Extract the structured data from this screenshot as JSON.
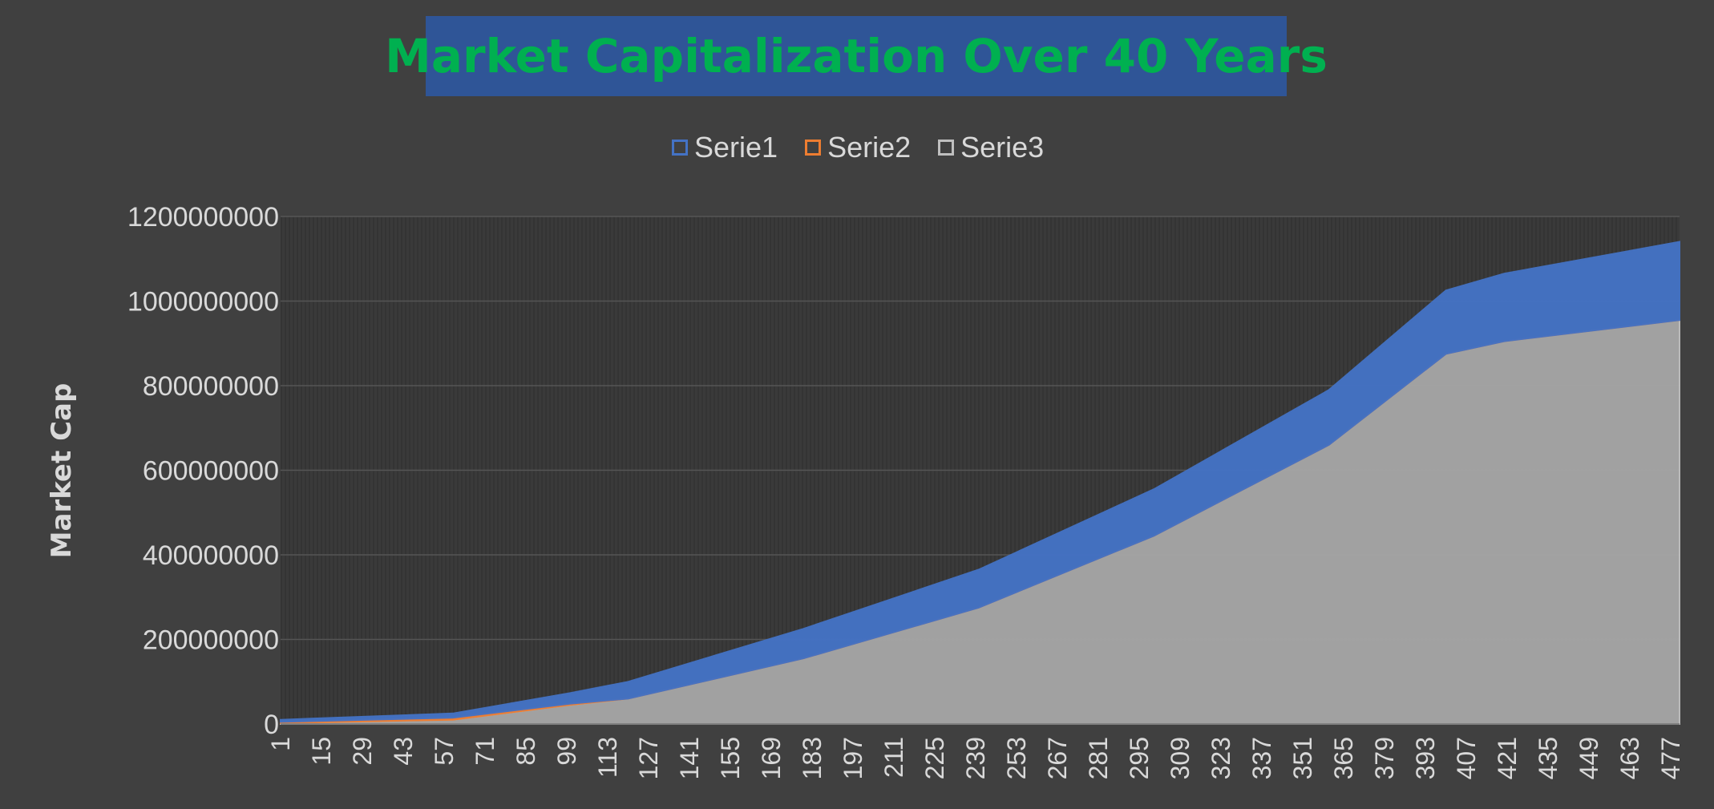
{
  "chart_data": {
    "type": "area",
    "stacked": true,
    "title": "Market Capitalization Over 40 Years",
    "xlabel": "",
    "ylabel": "Market Cap",
    "x_range": [
      1,
      480
    ],
    "x_tick_step": 14,
    "ylim": [
      0,
      1200000000
    ],
    "y_ticks": [
      0,
      200000000,
      400000000,
      600000000,
      800000000,
      1000000000,
      1200000000
    ],
    "grid": true,
    "legend_position": "top",
    "x": [
      1,
      60,
      100,
      120,
      180,
      240,
      300,
      360,
      400,
      420,
      480
    ],
    "series": [
      {
        "name": "Serie1",
        "color": "#4472C4",
        "outline": "#4472C4",
        "values": [
          5000000,
          10000000,
          25000000,
          40000000,
          70000000,
          90000000,
          110000000,
          130000000,
          150000000,
          160000000,
          185000000
        ]
      },
      {
        "name": "Serie2",
        "color": "#ED7D31",
        "outline": "#ED7D31",
        "values": [
          3000000,
          5000000,
          3000000,
          0,
          0,
          0,
          0,
          0,
          0,
          0,
          0
        ]
      },
      {
        "name": "Serie3",
        "color": "#A5A5A5",
        "outline": "#BFBFBF",
        "values": [
          2000000,
          10000000,
          45000000,
          60000000,
          155000000,
          275000000,
          445000000,
          660000000,
          875000000,
          905000000,
          955000000
        ]
      }
    ]
  }
}
